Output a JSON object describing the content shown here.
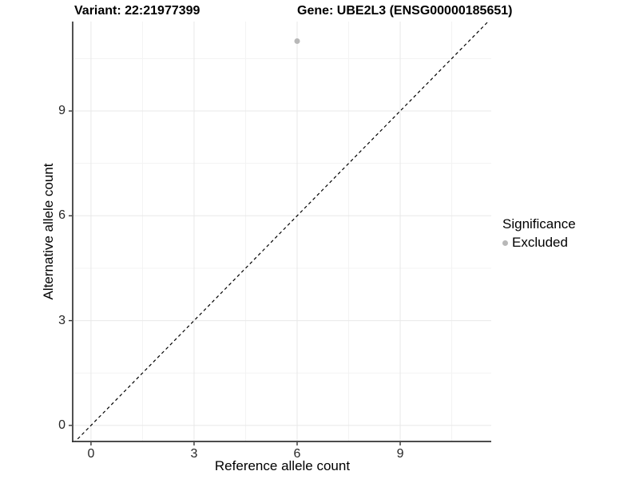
{
  "titles": {
    "variant": "Variant: 22:21977399",
    "gene": "Gene: UBE2L3 (ENSG00000185651)"
  },
  "chart_data": {
    "type": "scatter",
    "xlabel": "Reference allele count",
    "ylabel": "Alternative allele count",
    "xticks": [
      0,
      3,
      6,
      9
    ],
    "yticks": [
      0,
      3,
      6,
      9
    ],
    "minor_xticks": [
      1.5,
      4.5,
      7.5,
      10.5
    ],
    "minor_yticks": [
      1.5,
      4.5,
      7.5,
      10.5
    ],
    "xlim": [
      -0.51,
      11.65
    ],
    "ylim": [
      -0.46,
      11.56
    ],
    "grid": "on",
    "points": [
      {
        "x": 6,
        "y": 11,
        "series": "Excluded"
      }
    ],
    "identity_line": {
      "slope": 1,
      "intercept": 0,
      "style": "dashed"
    },
    "legend": {
      "position": "right",
      "title": "Significance",
      "items": [
        {
          "label": "Excluded",
          "color": "#b8b8b8"
        }
      ]
    }
  },
  "colors": {
    "point": "#b8b8b8",
    "axis_line": "#333333",
    "grid_major": "#e8e8e8",
    "grid_minor": "#f3f3f3",
    "identity_line": "#000000",
    "tick_text": "#262626"
  }
}
